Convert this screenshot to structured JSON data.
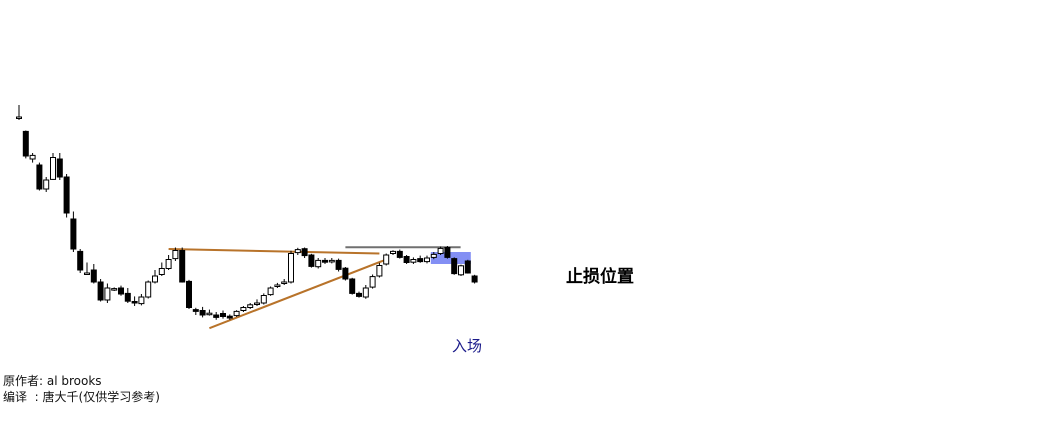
{
  "annotations": {
    "stop_loss_label": "止损位置",
    "entry_label": "入场"
  },
  "credits": {
    "author_label": "原作者:",
    "author": "al brooks",
    "translator_label": "编译  :",
    "translator": "唐大千(仅供学习参考)"
  },
  "colors": {
    "trendline": "#b8732a",
    "stop_line": "#707070",
    "entry_box": "#5a6af0",
    "candle": "#000000",
    "background": "#ffffff"
  },
  "chart_data": {
    "type": "candlestick",
    "title": "",
    "xlabel": "",
    "ylabel": "",
    "axes_visible": false,
    "grid": false,
    "ylim": [
      0,
      1000
    ],
    "x": [
      1,
      2,
      3,
      4,
      5,
      6,
      7,
      8,
      9,
      10,
      11,
      12,
      13,
      14,
      15,
      16,
      17,
      18,
      19,
      20,
      21,
      22,
      23,
      24,
      25,
      26,
      27,
      28,
      29,
      30,
      31,
      32,
      33,
      34,
      35,
      36,
      37,
      38,
      39,
      40,
      41,
      42,
      43,
      44,
      45,
      46,
      47,
      48,
      49,
      50,
      51,
      52,
      53,
      54,
      55,
      56,
      57,
      58,
      59,
      60,
      61,
      62,
      63,
      64,
      65,
      66,
      67,
      68
    ],
    "open": [
      960,
      912,
      820,
      800,
      720,
      752,
      820,
      760,
      620,
      512,
      440,
      450,
      410,
      350,
      385,
      390,
      372,
      345,
      338,
      360,
      410,
      435,
      455,
      488,
      515,
      412,
      318,
      315,
      305,
      300,
      305,
      296,
      298,
      315,
      325,
      336,
      340,
      368,
      395,
      405,
      410,
      508,
      521,
      500,
      461,
      482,
      478,
      482,
      456,
      420,
      372,
      360,
      393,
      430,
      470,
      505,
      512,
      495,
      476,
      488,
      478,
      492,
      505,
      525,
      488,
      434,
      480,
      430
    ],
    "close": [
      960,
      830,
      832,
      720,
      750,
      825,
      760,
      640,
      520,
      450,
      440,
      410,
      350,
      390,
      388,
      370,
      346,
      340,
      360,
      410,
      430,
      455,
      485,
      515,
      410,
      325,
      312,
      300,
      306,
      292,
      295,
      290,
      312,
      325,
      334,
      340,
      365,
      390,
      400,
      410,
      505,
      518,
      498,
      462,
      482,
      476,
      482,
      452,
      420,
      372,
      362,
      390,
      428,
      465,
      500,
      512,
      492,
      475,
      485,
      478,
      490,
      502,
      522,
      492,
      438,
      464,
      440,
      410
    ],
    "high": [
      1000,
      915,
      840,
      808,
      760,
      840,
      840,
      770,
      645,
      520,
      475,
      470,
      420,
      405,
      392,
      398,
      390,
      362,
      370,
      415,
      450,
      475,
      500,
      525,
      525,
      417,
      324,
      327,
      318,
      310,
      315,
      302,
      316,
      330,
      340,
      352,
      372,
      395,
      407,
      420,
      514,
      524,
      525,
      504,
      490,
      490,
      490,
      488,
      460,
      424,
      378,
      400,
      435,
      474,
      505,
      516,
      518,
      500,
      492,
      498,
      498,
      510,
      528,
      530,
      492,
      468,
      484,
      434
    ],
    "low": [
      950,
      822,
      808,
      715,
      710,
      750,
      750,
      625,
      510,
      440,
      435,
      405,
      345,
      340,
      380,
      364,
      340,
      330,
      332,
      355,
      405,
      430,
      450,
      480,
      408,
      320,
      300,
      292,
      298,
      284,
      288,
      284,
      294,
      310,
      320,
      330,
      335,
      364,
      390,
      400,
      405,
      500,
      490,
      458,
      455,
      470,
      472,
      445,
      415,
      368,
      358,
      354,
      388,
      425,
      465,
      500,
      488,
      470,
      470,
      474,
      472,
      486,
      500,
      488,
      434,
      430,
      438,
      405
    ],
    "trendlines": [
      {
        "x": [
          23,
          54
        ],
        "y": [
          520,
          505
        ]
      },
      {
        "x": [
          29,
          55
        ],
        "y": [
          256,
          485
        ]
      }
    ],
    "stop_line": {
      "x": [
        49,
        63
      ],
      "y": 526
    },
    "entry_zone": {
      "x": [
        62,
        67
      ],
      "y": [
        470,
        510
      ]
    }
  }
}
